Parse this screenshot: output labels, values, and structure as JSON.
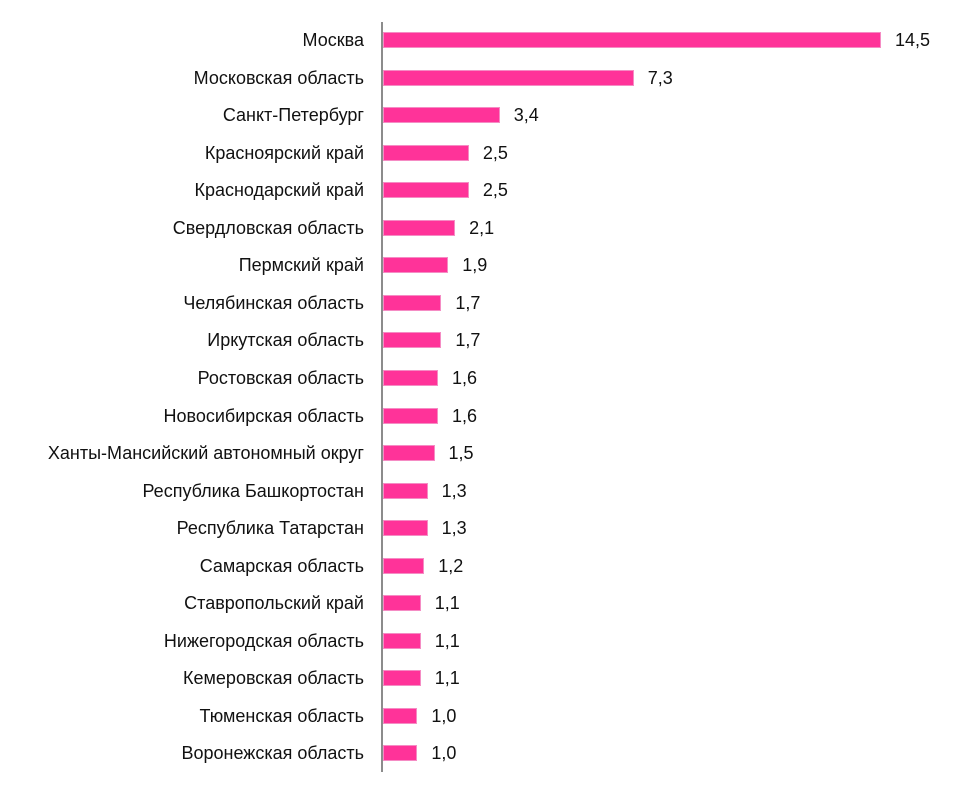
{
  "chart_data": {
    "type": "bar",
    "orientation": "horizontal",
    "title": "",
    "xlabel": "",
    "ylabel": "",
    "grid": false,
    "legend": null,
    "bar_color": "#ff3399",
    "xlim": [
      0,
      14.5
    ],
    "categories": [
      "Москва",
      "Московская область",
      "Санкт-Петербург",
      "Красноярский край",
      "Краснодарский край",
      "Свердловская область",
      "Пермский край",
      "Челябинская область",
      "Иркутская область",
      "Ростовская область",
      "Новосибирская область",
      "Ханты-Мансийский автономный округ",
      "Республика Башкортостан",
      "Республика Татарстан",
      "Самарская область",
      "Ставропольский край",
      "Нижегородская область",
      "Кемеровская область",
      "Тюменская область",
      "Воронежская область"
    ],
    "values": [
      14.5,
      7.3,
      3.4,
      2.5,
      2.5,
      2.1,
      1.9,
      1.7,
      1.7,
      1.6,
      1.6,
      1.5,
      1.3,
      1.3,
      1.2,
      1.1,
      1.1,
      1.1,
      1.0,
      1.0
    ],
    "value_labels": [
      "14,5",
      "7,3",
      "3,4",
      "2,5",
      "2,5",
      "2,1",
      "1,9",
      "1,7",
      "1,7",
      "1,6",
      "1,6",
      "1,5",
      "1,3",
      "1,3",
      "1,2",
      "1,1",
      "1,1",
      "1,1",
      "1,0",
      "1,0"
    ]
  }
}
